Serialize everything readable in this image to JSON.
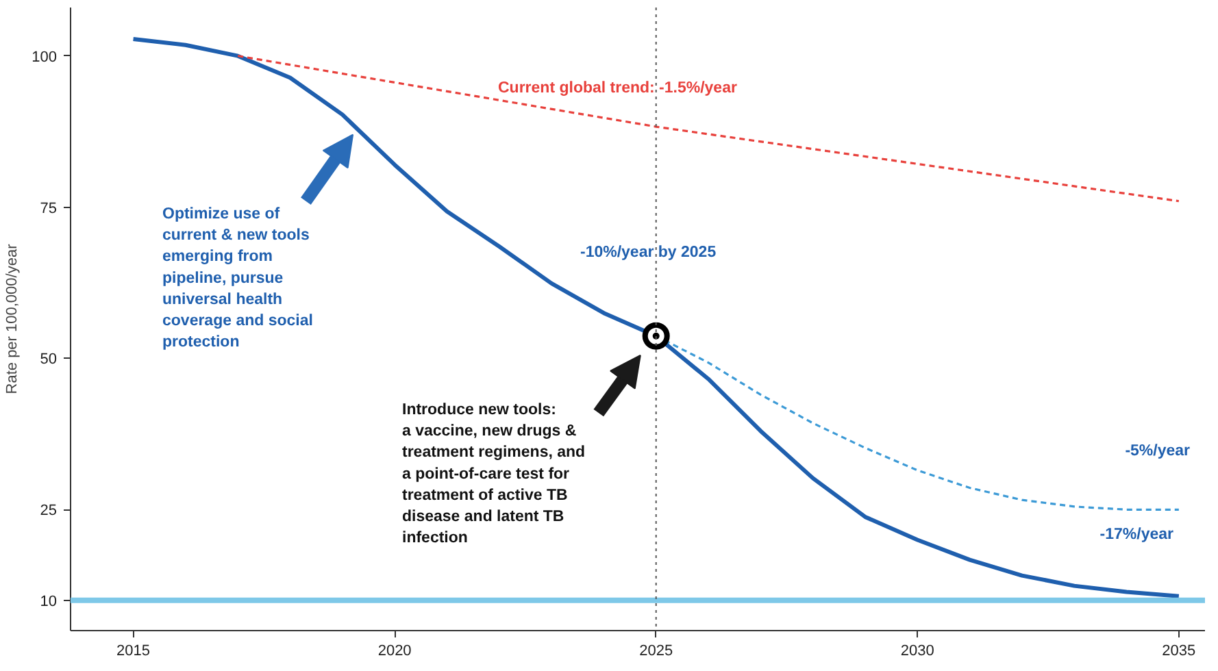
{
  "chart_data": {
    "type": "line",
    "ylabel": "Rate per 100,000/year",
    "xlim": [
      2013.8,
      2035.5
    ],
    "ylim": [
      5,
      108
    ],
    "xticks": [
      2015,
      2020,
      2025,
      2030,
      2035
    ],
    "yticks": [
      10,
      25,
      50,
      75,
      100
    ],
    "grid": false,
    "series": [
      {
        "color": "#1f5fae",
        "line_style": "solid",
        "x": [
          2015,
          2016,
          2017,
          2018,
          2019,
          2020,
          2021,
          2022,
          2023,
          2024,
          2025,
          2026,
          2027,
          2028,
          2029,
          2030,
          2031,
          2032,
          2033,
          2034,
          2035
        ],
        "values": [
          102.8,
          101.8,
          100,
          96.4,
          90.3,
          82,
          74.3,
          68.5,
          62.4,
          57.5,
          53.7,
          46.6,
          38,
          30.2,
          23.8,
          20,
          16.7,
          14.1,
          12.4,
          11.4,
          10.7
        ]
      },
      {
        "color": "#e8413c",
        "line_style": "dashed",
        "x": [
          2017,
          2025,
          2035
        ],
        "values": [
          100,
          88.3,
          76
        ]
      },
      {
        "color": "#3c9ad6",
        "line_style": "dashed",
        "x": [
          2025,
          2026,
          2027,
          2028,
          2029,
          2030,
          2031,
          2032,
          2033,
          2034,
          2035
        ],
        "values": [
          53.7,
          49.3,
          44,
          39.3,
          35.2,
          31.5,
          28.6,
          26.6,
          25.5,
          25,
          25
        ]
      },
      {
        "type": "scatter",
        "marker": "circle",
        "color": "#000000",
        "x": [
          2025
        ],
        "values": [
          53.7
        ]
      }
    ],
    "ref_lines": [
      {
        "axis": "y",
        "value": 10,
        "color": "#7ec8e8",
        "line_style": "solid"
      },
      {
        "axis": "x",
        "value": 2025,
        "color": "#555555",
        "line_style": "dotted"
      }
    ],
    "annotations": [
      "Current global trend:  -1.5%/year",
      "-10%/year by 2025",
      "Optimize use of\ncurrent & new tools\nemerging from\npipeline, pursue\nuniversal health\ncoverage and social\nprotection",
      "Introduce new tools:\na vaccine, new drugs &\ntreatment regimens, and\na point-of-care test for\ntreatment of active TB\ndisease and  latent TB\ninfection",
      "-5%/year",
      "-17%/year"
    ]
  }
}
